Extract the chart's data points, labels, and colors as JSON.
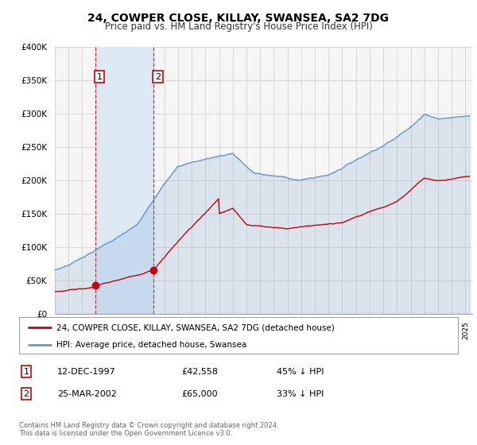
{
  "title": "24, COWPER CLOSE, KILLAY, SWANSEA, SA2 7DG",
  "subtitle": "Price paid vs. HM Land Registry's House Price Index (HPI)",
  "sale1_price": 42558,
  "sale1_label": "1",
  "sale1_year": 1997,
  "sale1_month": 12,
  "sale1_day": 12,
  "sale2_price": 65000,
  "sale2_label": "2",
  "sale2_year": 2002,
  "sale2_month": 3,
  "sale2_day": 25,
  "property_line_color": "#cc0000",
  "hpi_line_color": "#6699cc",
  "shade_color": "#dde8f5",
  "grid_color": "#cccccc",
  "background_color": "#f5f5f5",
  "ylim": [
    0,
    400000
  ],
  "yticks": [
    0,
    50000,
    100000,
    150000,
    200000,
    250000,
    300000,
    350000,
    400000
  ],
  "ytick_labels": [
    "£0",
    "£50K",
    "£100K",
    "£150K",
    "£200K",
    "£250K",
    "£300K",
    "£350K",
    "£400K"
  ],
  "legend_property": "24, COWPER CLOSE, KILLAY, SWANSEA, SA2 7DG (detached house)",
  "legend_hpi": "HPI: Average price, detached house, Swansea",
  "table_row1": [
    "1",
    "12-DEC-1997",
    "£42,558",
    "45% ↓ HPI"
  ],
  "table_row2": [
    "2",
    "25-MAR-2002",
    "£65,000",
    "33% ↓ HPI"
  ],
  "footer1": "Contains HM Land Registry data © Crown copyright and database right 2024.",
  "footer2": "This data is licensed under the Open Government Licence v3.0."
}
